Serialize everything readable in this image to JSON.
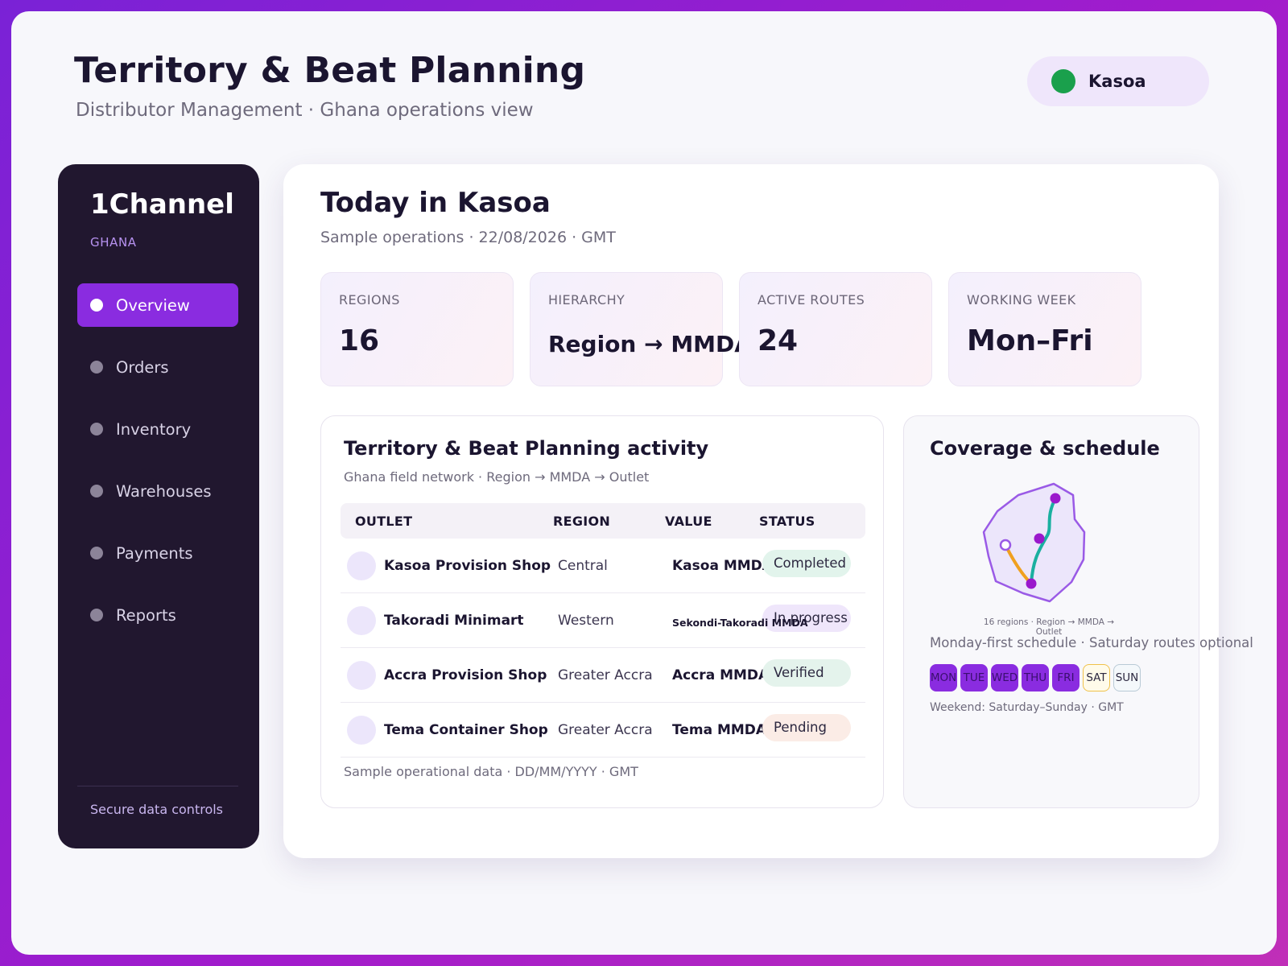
{
  "header": {
    "title": "Territory & Beat Planning",
    "subtitle": "Distributor Management · Ghana operations view",
    "location": "Kasoa"
  },
  "sidebar": {
    "brand": "1Channel",
    "country": "GHANA",
    "items": [
      {
        "label": "Overview",
        "active": true
      },
      {
        "label": "Orders"
      },
      {
        "label": "Inventory"
      },
      {
        "label": "Warehouses"
      },
      {
        "label": "Payments"
      },
      {
        "label": "Reports"
      }
    ],
    "footer": "Secure data controls"
  },
  "main": {
    "title": "Today in Kasoa",
    "subtitle": "Sample operations · 22/08/2026 · GMT",
    "stats": [
      {
        "label": "REGIONS",
        "value": "16"
      },
      {
        "label": "HIERARCHY",
        "value": "Region → MMDA"
      },
      {
        "label": "ACTIVE ROUTES",
        "value": "24"
      },
      {
        "label": "WORKING WEEK",
        "value": "Mon–Fri"
      }
    ]
  },
  "activity": {
    "title": "Territory & Beat Planning activity",
    "subtitle": "Ghana field network · Region → MMDA → Outlet",
    "columns": [
      "OUTLET",
      "REGION",
      "VALUE",
      "STATUS"
    ],
    "rows": [
      {
        "outlet": "Kasoa Provision Shop",
        "region": "Central",
        "value": "Kasoa MMDA",
        "status": "Completed"
      },
      {
        "outlet": "Takoradi Minimart",
        "region": "Western",
        "value": "Sekondi-Takoradi MMDA",
        "status": "In progress"
      },
      {
        "outlet": "Accra Provision Shop",
        "region": "Greater Accra",
        "value": "Accra MMDA",
        "status": "Verified"
      },
      {
        "outlet": "Tema Container Shop",
        "region": "Greater Accra",
        "value": "Tema MMDA",
        "status": "Pending"
      }
    ],
    "footer": "Sample operational data · DD/MM/YYYY · GMT"
  },
  "coverage": {
    "title": "Coverage & schedule",
    "map_caption": "16 regions · Region → MMDA → Outlet",
    "schedule": "Monday-first schedule · Saturday routes optional",
    "days": [
      "MON",
      "TUE",
      "WED",
      "THU",
      "FRI",
      "SAT",
      "SUN"
    ],
    "weekend_note": "Weekend: Saturday–Sunday · GMT"
  },
  "colors": {
    "accent": "#8a2ce0",
    "sidebar": "#21172f",
    "status_dot": "#1aa04c",
    "route_teal": "#1ab0a0",
    "route_orange": "#f0a020"
  }
}
